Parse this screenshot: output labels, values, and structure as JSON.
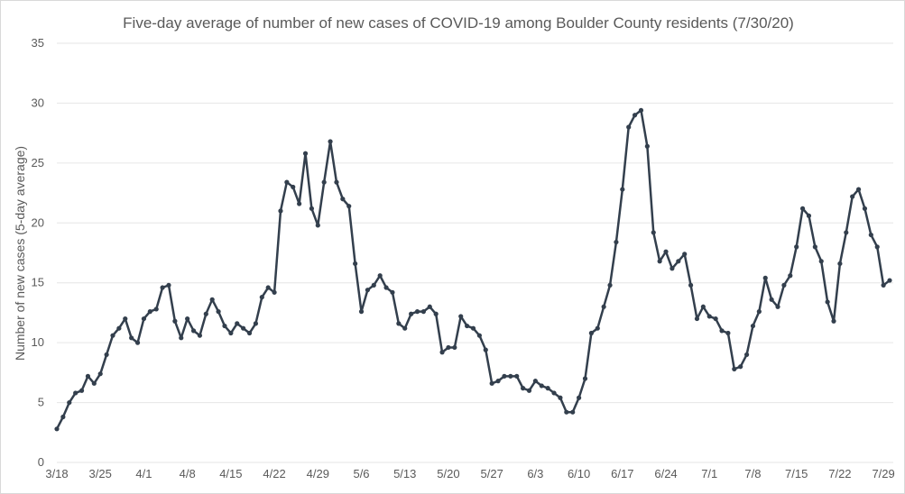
{
  "chart_data": {
    "type": "line",
    "title": "Five-day average of number of new cases of COVID-19 among Boulder County residents (7/30/20)",
    "ylabel": "Number of new cases (5-day average)",
    "xlabel": "",
    "ylim": [
      0,
      35
    ],
    "yticks": [
      0,
      5,
      10,
      15,
      20,
      25,
      30,
      35
    ],
    "xtick_labels": [
      "3/18",
      "3/25",
      "4/1",
      "4/8",
      "4/15",
      "4/22",
      "4/29",
      "5/6",
      "5/13",
      "5/20",
      "5/27",
      "6/3",
      "6/10",
      "6/17",
      "6/24",
      "7/1",
      "7/8",
      "7/15",
      "7/22",
      "7/29"
    ],
    "grid": true,
    "legend": "none",
    "series_color": "#333f4d",
    "start_date": "3/18",
    "series": [
      {
        "values": [
          2.8,
          3.8,
          5.0,
          5.8,
          6.0,
          7.2,
          6.6,
          7.4,
          9.0,
          10.6,
          11.2,
          12.0,
          10.4,
          10.0,
          12.0,
          12.6,
          12.8,
          14.6,
          14.8,
          11.8,
          10.4,
          12.0,
          11.0,
          10.6,
          12.4,
          13.6,
          12.6,
          11.4,
          10.8,
          11.6,
          11.2,
          10.8,
          11.6,
          13.8,
          14.6,
          14.2,
          21.0,
          23.4,
          23.0,
          21.6,
          25.8,
          21.2,
          19.8,
          23.4,
          26.8,
          23.4,
          22.0,
          21.4,
          16.6,
          12.6,
          14.4,
          14.8,
          15.6,
          14.6,
          14.2,
          11.6,
          11.2,
          12.4,
          12.6,
          12.6,
          13.0,
          12.4,
          9.2,
          9.6,
          9.6,
          12.2,
          11.4,
          11.2,
          10.6,
          9.4,
          6.6,
          6.8,
          7.2,
          7.2,
          7.2,
          6.2,
          6.0,
          6.8,
          6.4,
          6.2,
          5.8,
          5.4,
          4.2,
          4.2,
          5.4,
          7.0,
          10.8,
          11.2,
          13.0,
          14.8,
          18.4,
          22.8,
          28.0,
          29.0,
          29.4,
          26.4,
          19.2,
          16.8,
          17.6,
          16.2,
          16.8,
          17.4,
          14.8,
          12.0,
          13.0,
          12.2,
          12.0,
          11.0,
          10.8,
          7.8,
          8.0,
          9.0,
          11.4,
          12.6,
          15.4,
          13.6,
          13.0,
          14.8,
          15.6,
          18.0,
          21.2,
          20.6,
          18.0,
          16.8,
          13.4,
          11.8,
          16.6,
          19.2,
          22.2,
          22.8,
          21.2,
          19.0,
          18.0,
          14.8,
          15.2
        ]
      }
    ]
  }
}
